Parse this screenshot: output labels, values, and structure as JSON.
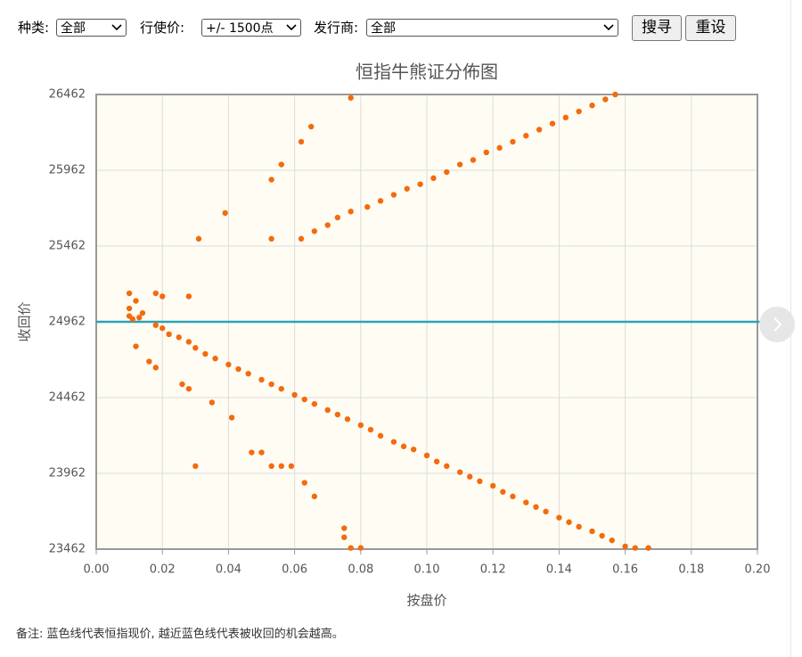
{
  "controls": {
    "type_label": "种类:",
    "type_value": "全部",
    "strike_label": "行使价:",
    "strike_value": "+/- 1500点",
    "issuer_label": "发行商:",
    "issuer_value": "全部",
    "search_button": "搜寻",
    "reset_button": "重设"
  },
  "chart_data": {
    "type": "scatter",
    "title": "恒指牛熊证分佈图",
    "x_label": "按盘价",
    "y_label": "收回价",
    "color": "#f26b0f",
    "xlim": [
      0,
      0.2
    ],
    "ylim": [
      23462,
      26462
    ],
    "xticks": [
      {
        "value": 0,
        "label": "0.00"
      },
      {
        "value": 0.02,
        "label": "0.02"
      },
      {
        "value": 0.04,
        "label": "0.04"
      },
      {
        "value": 0.06,
        "label": "0.06"
      },
      {
        "value": 0.08,
        "label": "0.08"
      },
      {
        "value": 0.1,
        "label": "0.10"
      },
      {
        "value": 0.12,
        "label": "0.12"
      },
      {
        "value": 0.14,
        "label": "0.14"
      },
      {
        "value": 0.16,
        "label": "0.16"
      },
      {
        "value": 0.18,
        "label": "0.18"
      },
      {
        "value": 0.2,
        "label": "0.20"
      }
    ],
    "yticks": [
      23462,
      23962,
      24462,
      24962,
      25462,
      25962,
      26462
    ],
    "grid": true,
    "hline": {
      "value": 24962,
      "color": "#2aa3b5"
    },
    "x": [
      0.01,
      0.01,
      0.011,
      0.012,
      0.01,
      0.013,
      0.014,
      0.018,
      0.02,
      0.022,
      0.025,
      0.028,
      0.03,
      0.033,
      0.036,
      0.04,
      0.043,
      0.046,
      0.05,
      0.053,
      0.056,
      0.06,
      0.063,
      0.066,
      0.07,
      0.073,
      0.076,
      0.08,
      0.083,
      0.086,
      0.09,
      0.093,
      0.096,
      0.1,
      0.103,
      0.106,
      0.11,
      0.113,
      0.116,
      0.12,
      0.123,
      0.126,
      0.13,
      0.133,
      0.136,
      0.14,
      0.143,
      0.146,
      0.15,
      0.153,
      0.156,
      0.16,
      0.163,
      0.167,
      0.012,
      0.016,
      0.018,
      0.026,
      0.028,
      0.035,
      0.041,
      0.047,
      0.05,
      0.053,
      0.056,
      0.059,
      0.03,
      0.063,
      0.066,
      0.075,
      0.077,
      0.08,
      0.075,
      0.018,
      0.02,
      0.028,
      0.031,
      0.039,
      0.053,
      0.053,
      0.056,
      0.062,
      0.065,
      0.077,
      0.062,
      0.066,
      0.07,
      0.073,
      0.077,
      0.082,
      0.086,
      0.09,
      0.094,
      0.098,
      0.102,
      0.106,
      0.11,
      0.114,
      0.118,
      0.122,
      0.126,
      0.13,
      0.134,
      0.138,
      0.142,
      0.146,
      0.15,
      0.154,
      0.157
    ],
    "y": [
      25050,
      25000,
      24980,
      25100,
      25150,
      24990,
      25020,
      24940,
      24920,
      24880,
      24860,
      24830,
      24790,
      24750,
      24720,
      24680,
      24650,
      24620,
      24580,
      24550,
      24520,
      24480,
      24450,
      24420,
      24380,
      24350,
      24320,
      24280,
      24250,
      24210,
      24170,
      24140,
      24120,
      24080,
      24040,
      24010,
      23970,
      23940,
      23910,
      23880,
      23840,
      23810,
      23770,
      23740,
      23710,
      23670,
      23640,
      23610,
      23580,
      23550,
      23520,
      23480,
      23470,
      23470,
      24800,
      24700,
      24660,
      24550,
      24520,
      24430,
      24330,
      24100,
      24100,
      24010,
      24010,
      24010,
      24010,
      23900,
      23810,
      23600,
      23470,
      23470,
      23540,
      25150,
      25130,
      25130,
      25510,
      25680,
      25510,
      25900,
      26000,
      26150,
      26250,
      26440,
      25510,
      25560,
      25600,
      25650,
      25690,
      25720,
      25760,
      25800,
      25840,
      25870,
      25910,
      25950,
      26000,
      26030,
      26080,
      26110,
      26150,
      26190,
      26230,
      26270,
      26310,
      26350,
      26390,
      26430,
      26462
    ]
  },
  "footnote": "备注: 蓝色线代表恒指现价, 越近蓝色线代表被收回的机会越高。"
}
